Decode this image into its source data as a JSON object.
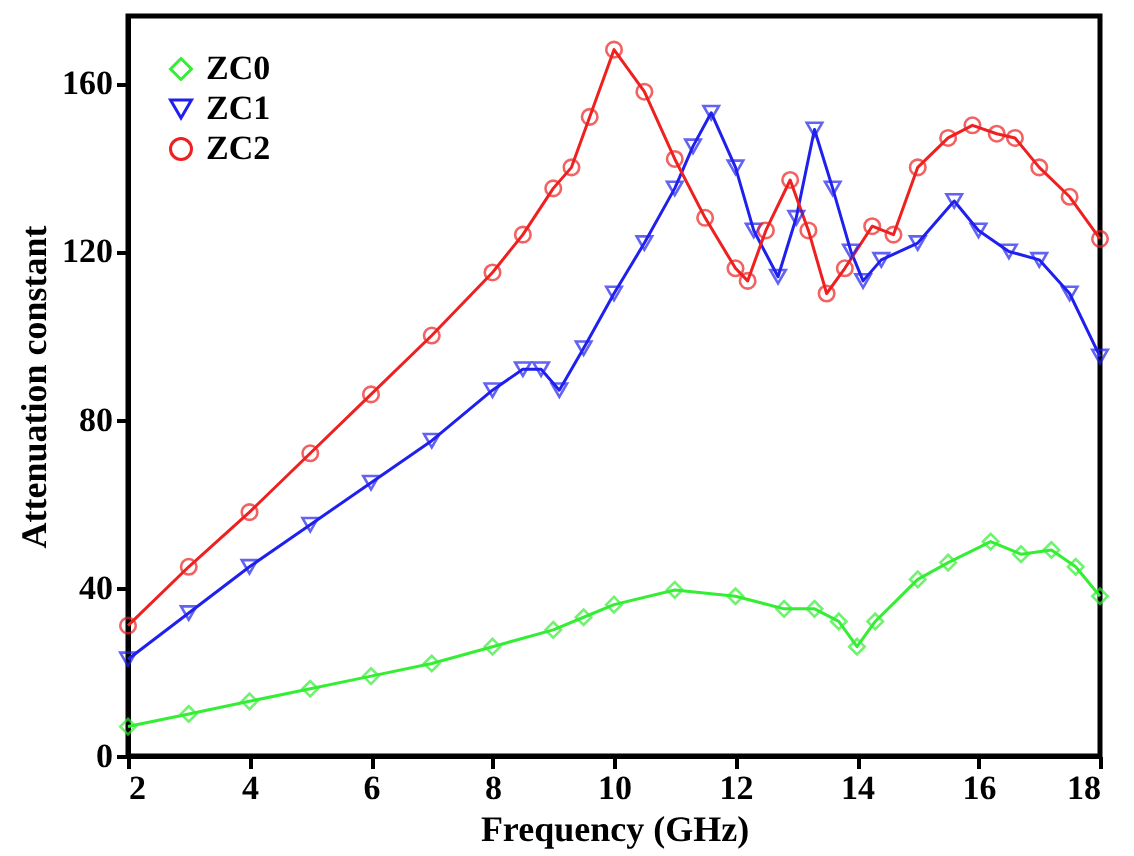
{
  "chart_data": {
    "type": "line",
    "xlabel": "Frequency (GHz)",
    "ylabel": "Attenuation constant",
    "xlim": [
      2,
      18
    ],
    "xticks": [
      2,
      4,
      6,
      8,
      10,
      12,
      14,
      16,
      18
    ],
    "ylim": [
      0,
      176
    ],
    "yticks": [
      0,
      40,
      80,
      120,
      160
    ],
    "grid": false,
    "legend": "top left",
    "series": [
      {
        "name": "ZC0",
        "color": "#33ee33",
        "marker": "diamond",
        "x": [
          2,
          3,
          4,
          5,
          6,
          7,
          8,
          9,
          9.5,
          10,
          11,
          12,
          12.8,
          13.3,
          13.7,
          14,
          14.3,
          15,
          15.5,
          16.2,
          16.7,
          17.2,
          17.6,
          18
        ],
        "values": [
          7,
          10,
          13,
          16,
          19,
          22,
          26,
          30,
          33,
          36,
          39.5,
          38,
          35,
          35,
          32,
          26,
          32,
          42,
          46,
          51,
          48,
          49,
          45,
          38
        ]
      },
      {
        "name": "ZC1",
        "color": "#2020ee",
        "marker": "triangle",
        "x": [
          2,
          3,
          4,
          5,
          6,
          7,
          8,
          8.5,
          8.8,
          9.1,
          9.5,
          10,
          10.5,
          11,
          11.3,
          11.6,
          12,
          12.3,
          12.7,
          13,
          13.3,
          13.6,
          13.9,
          14.1,
          14.4,
          15,
          15.6,
          16,
          16.5,
          17,
          17.5,
          18
        ],
        "values": [
          23,
          34,
          45,
          55,
          65,
          75,
          87,
          92,
          92,
          87,
          97,
          110,
          122,
          135,
          145,
          153,
          140,
          125,
          114,
          128,
          149,
          135,
          120,
          113,
          118,
          122,
          132,
          125,
          120,
          118,
          110,
          95
        ]
      },
      {
        "name": "ZC2",
        "color": "#ee2020",
        "marker": "circle",
        "x": [
          2,
          3,
          4,
          5,
          6,
          7,
          8,
          8.5,
          9,
          9.3,
          9.6,
          10,
          10.5,
          11,
          11.5,
          12,
          12.2,
          12.5,
          12.9,
          13.2,
          13.5,
          13.8,
          14.25,
          14.6,
          15,
          15.5,
          15.9,
          16.3,
          16.6,
          17,
          17.5,
          18
        ],
        "values": [
          31,
          45,
          58,
          72,
          86,
          100,
          115,
          124,
          135,
          140,
          152,
          168,
          158,
          142,
          128,
          116,
          113,
          125,
          137,
          125,
          110,
          116,
          126,
          124,
          140,
          147,
          150,
          148,
          147,
          140,
          133,
          123
        ]
      }
    ]
  }
}
